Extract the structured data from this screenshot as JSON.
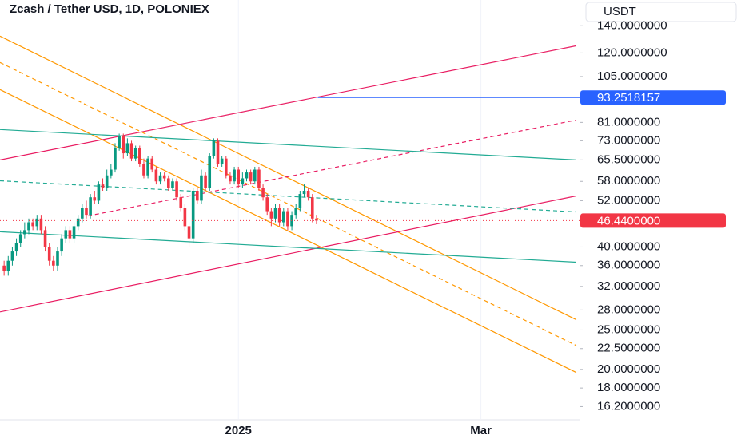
{
  "chart_data": {
    "type": "candlestick",
    "title": "Zcash / Tether USD, 1D, POLONIEX",
    "currency": "USDT",
    "log_scale": true,
    "up_color": "#089981",
    "down_color": "#f23645",
    "open": [
      36,
      35,
      37,
      39,
      41,
      43,
      44,
      46,
      45,
      47,
      44,
      40,
      37,
      36,
      39,
      42,
      44,
      42,
      45,
      47,
      50,
      48,
      53,
      52,
      57,
      56,
      60,
      62,
      70,
      75,
      68,
      72,
      66,
      70,
      64,
      60,
      66,
      62,
      58,
      60,
      59,
      56,
      58,
      53,
      50,
      45,
      42,
      55,
      52,
      60,
      56,
      67,
      73,
      64,
      66,
      60,
      58,
      62,
      57,
      59,
      61,
      58,
      62,
      56,
      53,
      49,
      47,
      50,
      46,
      49,
      45,
      48,
      50,
      54,
      55,
      53,
      47
    ],
    "high": [
      37,
      38,
      40,
      42,
      44,
      46,
      47,
      47,
      48,
      48,
      45,
      41,
      38,
      40,
      43,
      45,
      45,
      46,
      48,
      51,
      52,
      54,
      55,
      58,
      59,
      62,
      64,
      72,
      76,
      76,
      74,
      73,
      71,
      71,
      66,
      67,
      67,
      63,
      61,
      61,
      60,
      59,
      59,
      54,
      51,
      46,
      56,
      56,
      62,
      61,
      68,
      74,
      74,
      67,
      67,
      61,
      63,
      63,
      61,
      62,
      62,
      63,
      63,
      57,
      54,
      50,
      51,
      51,
      50,
      50,
      49,
      51,
      55,
      57,
      56,
      54,
      48
    ],
    "low": [
      34,
      34,
      36,
      38,
      40,
      42,
      43,
      44,
      44,
      43,
      39,
      36,
      35,
      35,
      38,
      41,
      41,
      41,
      44,
      46,
      47,
      47,
      51,
      51,
      55,
      55,
      59,
      61,
      69,
      66,
      67,
      65,
      65,
      63,
      59,
      59,
      61,
      57,
      57,
      58,
      55,
      55,
      52,
      49,
      44,
      40,
      41,
      51,
      51,
      55,
      55,
      66,
      63,
      63,
      59,
      57,
      57,
      56,
      56,
      58,
      57,
      57,
      55,
      52,
      48,
      45,
      46,
      45,
      45,
      44,
      44,
      47,
      49,
      53,
      52,
      46,
      45.5
    ],
    "close": [
      35,
      37,
      39,
      41,
      43,
      44,
      46,
      45,
      47,
      44,
      40,
      37,
      36,
      39,
      42,
      44,
      42,
      45,
      47,
      50,
      48,
      53,
      52,
      57,
      56,
      60,
      62,
      70,
      75,
      68,
      72,
      66,
      70,
      64,
      60,
      66,
      62,
      58,
      60,
      59,
      56,
      58,
      53,
      50,
      45,
      42,
      55,
      52,
      60,
      56,
      67,
      73,
      64,
      66,
      60,
      58,
      62,
      57,
      59,
      61,
      58,
      62,
      56,
      53,
      49,
      47,
      50,
      46,
      49,
      45,
      48,
      50,
      54,
      55,
      53,
      47,
      46.44
    ],
    "xlim": [
      -1,
      140
    ],
    "xticks": [
      {
        "value": 57,
        "label": "2025"
      },
      {
        "value": 116,
        "label": "Mar"
      }
    ],
    "ylim": [
      15.1,
      162
    ],
    "yticks": [
      {
        "value": 140,
        "label": "140.0000000"
      },
      {
        "value": 120,
        "label": "120.0000000"
      },
      {
        "value": 105,
        "label": "105.0000000"
      },
      {
        "value": 81,
        "label": "81.0000000"
      },
      {
        "value": 73,
        "label": "73.0000000"
      },
      {
        "value": 65.5,
        "label": "65.5000000"
      },
      {
        "value": 58,
        "label": "58.0000000"
      },
      {
        "value": 52,
        "label": "52.0000000"
      },
      {
        "value": 40,
        "label": "40.0000000"
      },
      {
        "value": 36,
        "label": "36.0000000"
      },
      {
        "value": 32,
        "label": "32.0000000"
      },
      {
        "value": 28,
        "label": "28.0000000"
      },
      {
        "value": 25,
        "label": "25.0000000"
      },
      {
        "value": 22.5,
        "label": "22.5000000"
      },
      {
        "value": 20,
        "label": "20.0000000"
      },
      {
        "value": 18,
        "label": "18.0000000"
      },
      {
        "value": 16.2,
        "label": "16.2000000"
      }
    ],
    "price_lines": [
      {
        "value": 93.2518157,
        "label": "93.2518157",
        "color": "#2962ff",
        "start_x": 76.3,
        "style": "solid"
      },
      {
        "value": 46.44,
        "label": "46.4400000",
        "color": "#f23645",
        "style": "dotted"
      }
    ],
    "drawings": [
      {
        "color": "#ff9800",
        "dashed": false,
        "x": [
          -1,
          139.2
        ],
        "y": [
          132,
          26.5
        ]
      },
      {
        "color": "#ff9800",
        "dashed": true,
        "x": [
          -1,
          139.2
        ],
        "y": [
          113.7,
          22.9
        ]
      },
      {
        "color": "#ff9800",
        "dashed": false,
        "x": [
          -1,
          139.2
        ],
        "y": [
          97.5,
          19.65
        ]
      },
      {
        "color": "#e91e63",
        "dashed": false,
        "x": [
          -1,
          139.2
        ],
        "y": [
          65.5,
          125
        ]
      },
      {
        "color": "#e91e63",
        "dashed": true,
        "x": [
          20.4,
          139.2
        ],
        "y": [
          47.7,
          82.1
        ]
      },
      {
        "color": "#e91e63",
        "dashed": false,
        "x": [
          -1,
          139.2
        ],
        "y": [
          27.7,
          53.4
        ]
      },
      {
        "color": "#22ab94",
        "dashed": false,
        "x": [
          -1,
          139.2
        ],
        "y": [
          77.8,
          65.5
        ]
      },
      {
        "color": "#22ab94",
        "dashed": true,
        "x": [
          -1,
          139.2
        ],
        "y": [
          58.2,
          48.8
        ]
      },
      {
        "color": "#22ab94",
        "dashed": false,
        "x": [
          -1,
          139.2
        ],
        "y": [
          43.6,
          36.7
        ]
      }
    ]
  }
}
